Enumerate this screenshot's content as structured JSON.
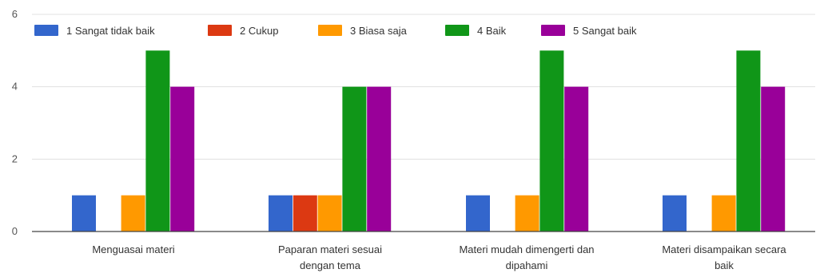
{
  "chart_data": {
    "type": "bar",
    "title": "",
    "xlabel": "",
    "ylabel": "",
    "ylim": [
      0,
      6
    ],
    "yticks": [
      0,
      2,
      4,
      6
    ],
    "grid": true,
    "legend_position": "top-left",
    "categories": [
      [
        "Menguasai materi"
      ],
      [
        "Paparan materi sesuai",
        "dengan tema"
      ],
      [
        "Materi mudah dimengerti dan",
        "dipahami"
      ],
      [
        "Materi disampaikan secara",
        "baik"
      ]
    ],
    "series": [
      {
        "name": "1 Sangat tidak baik",
        "color": "#3366cc",
        "values": [
          1,
          1,
          1,
          1
        ]
      },
      {
        "name": "2 Cukup",
        "color": "#dc3912",
        "values": [
          0,
          1,
          0,
          0
        ]
      },
      {
        "name": "3 Biasa saja",
        "color": "#ff9900",
        "values": [
          1,
          1,
          1,
          1
        ]
      },
      {
        "name": "4 Baik",
        "color": "#109618",
        "values": [
          5,
          4,
          5,
          5
        ]
      },
      {
        "name": "5 Sangat baik",
        "color": "#990099",
        "values": [
          4,
          4,
          4,
          4
        ]
      }
    ]
  }
}
